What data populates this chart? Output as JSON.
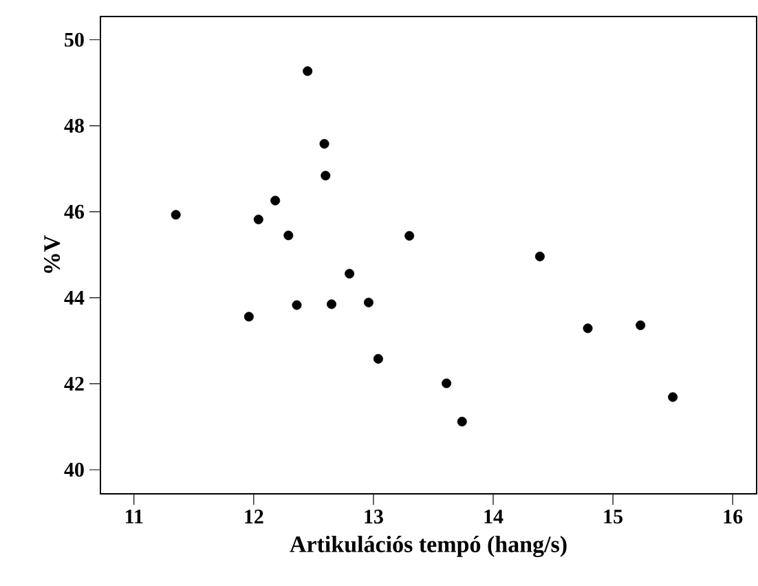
{
  "chart_data": {
    "type": "scatter",
    "xlabel": "Artikulációs tempó (hang/s)",
    "ylabel": "%V",
    "x": [
      11.35,
      12.45,
      12.59,
      12.6,
      12.18,
      12.04,
      12.29,
      13.3,
      14.39,
      12.8,
      11.96,
      12.36,
      12.65,
      12.96,
      13.04,
      13.61,
      13.74,
      14.79,
      15.23,
      15.5
    ],
    "values": [
      45.93,
      49.27,
      47.58,
      46.84,
      46.26,
      45.82,
      45.45,
      45.44,
      44.96,
      44.56,
      43.56,
      43.83,
      43.85,
      43.89,
      42.58,
      42.01,
      41.12,
      43.29,
      43.36,
      41.69
    ],
    "color": "#000000",
    "marker": "circle",
    "xlim": [
      10.72,
      16.2
    ],
    "ylim": [
      39.44,
      50.54
    ],
    "xticks": [
      11,
      12,
      13,
      14,
      15,
      16
    ],
    "yticks": [
      40,
      42,
      44,
      46,
      48,
      50
    ],
    "grid": false
  }
}
